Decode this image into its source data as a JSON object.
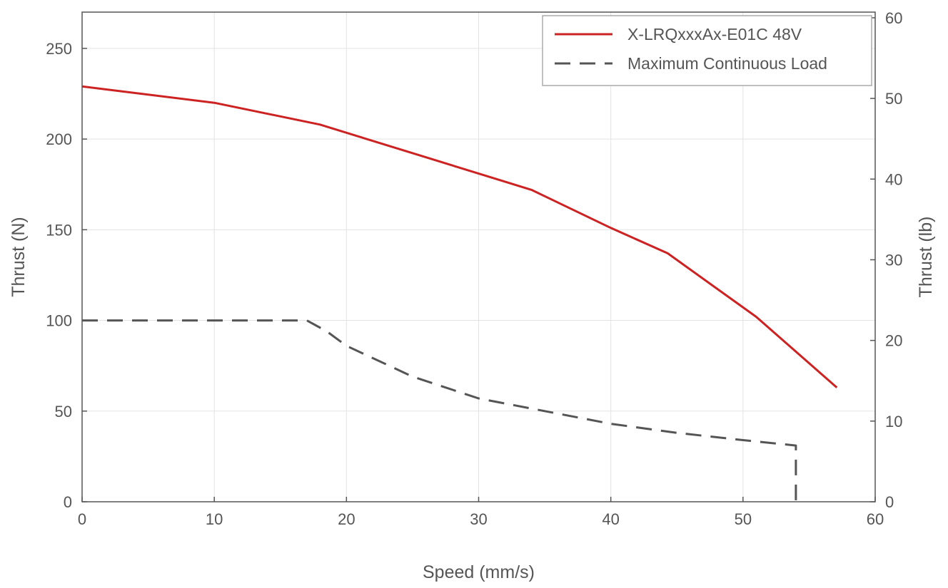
{
  "chart_data": {
    "type": "line",
    "xlabel": "Speed (mm/s)",
    "ylabel": "Thrust (N)",
    "ylabel_right": "Thrust (lb)",
    "xlim": [
      0,
      60
    ],
    "ylim": [
      0,
      270
    ],
    "ylim_right": [
      0,
      60.7
    ],
    "x_ticks": [
      "0",
      "10",
      "20",
      "30",
      "40",
      "50",
      "60"
    ],
    "y_ticks": [
      "0",
      "50",
      "100",
      "150",
      "200",
      "250"
    ],
    "y_ticks_right": [
      "0",
      "10",
      "20",
      "30",
      "40",
      "50",
      "60"
    ],
    "grid": true,
    "legend_position": "top-right",
    "series": [
      {
        "name": "X-LRQxxxAx-E01C 48V",
        "color": "#cc2222",
        "style": "solid",
        "x": [
          0,
          10,
          18,
          26,
          34,
          40,
          44.3,
          51,
          57.1
        ],
        "y": [
          229,
          220,
          208,
          190,
          172,
          151,
          137,
          102,
          63
        ]
      },
      {
        "name": "Maximum Continuous Load",
        "color": "#555555",
        "style": "dashed",
        "x": [
          0,
          17,
          18.5,
          20,
          25,
          30,
          35,
          40,
          45,
          50,
          54,
          54
        ],
        "y": [
          100,
          100,
          94,
          86,
          69,
          57,
          50,
          43,
          38,
          34,
          31,
          0
        ]
      }
    ]
  }
}
